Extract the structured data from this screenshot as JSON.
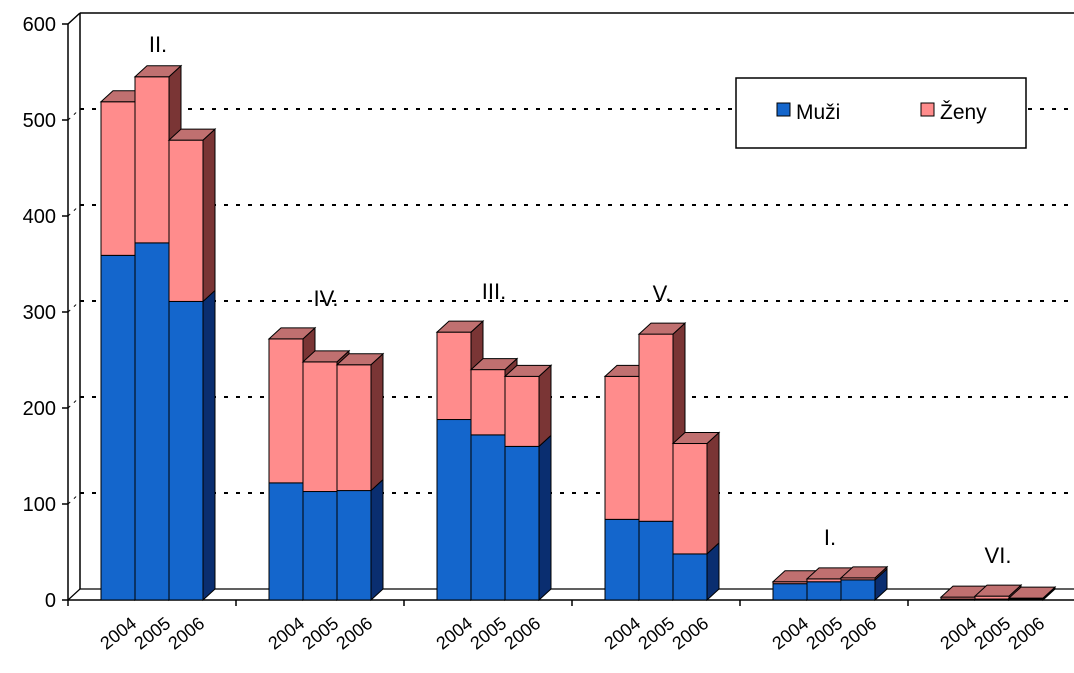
{
  "chart_data": {
    "type": "bar",
    "stacked": true,
    "three_d": true,
    "ylim": [
      0,
      600
    ],
    "yticks": [
      0,
      100,
      200,
      300,
      400,
      500,
      600
    ],
    "grid": "dotted horizontal",
    "legend_position": "top-right",
    "group_labels": [
      "II.",
      "IV.",
      "III.",
      "V.",
      "I.",
      "VI."
    ],
    "categories": [
      "2004",
      "2005",
      "2006"
    ],
    "series": [
      {
        "name": "Muži",
        "color": "#1466cc",
        "values": [
          [
            359,
            372,
            311
          ],
          [
            122,
            113,
            114
          ],
          [
            188,
            172,
            160
          ],
          [
            84,
            82,
            48
          ],
          [
            17,
            19,
            21
          ],
          [
            1,
            1,
            1
          ]
        ]
      },
      {
        "name": "Ženy",
        "color": "#ff8c8c",
        "values": [
          [
            160,
            173,
            168
          ],
          [
            150,
            135,
            131
          ],
          [
            91,
            68,
            73
          ],
          [
            149,
            195,
            115
          ],
          [
            2,
            3,
            2
          ],
          [
            2,
            3,
            1
          ]
        ]
      }
    ],
    "colors": {
      "top": "#c07070",
      "side_red": "#7a3535",
      "side_blue": "#0a2e70",
      "grid": "#000000"
    }
  }
}
